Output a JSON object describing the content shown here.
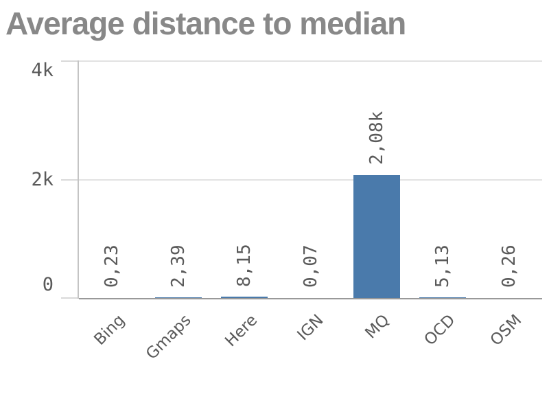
{
  "chart_data": {
    "type": "bar",
    "title": "Average distance to median",
    "categories": [
      "Bing",
      "Gmaps",
      "Here",
      "IGN",
      "MQ",
      "OCD",
      "OSM"
    ],
    "values": [
      0.23,
      2.39,
      8.15,
      0.07,
      2080,
      5.13,
      0.26
    ],
    "value_labels": [
      "0,23",
      "2,39",
      "8,15",
      "0,07",
      "2,08k",
      "5,13",
      "0,26"
    ],
    "yticks": [
      {
        "value": 0,
        "label": "0"
      },
      {
        "value": 2000,
        "label": "2k"
      },
      {
        "value": 4000,
        "label": "4k"
      }
    ],
    "ylim": [
      0,
      4000
    ],
    "xlabel": "",
    "ylabel": "",
    "grid": true,
    "legend": false,
    "value_label_rotation": -90,
    "category_label_rotation": -45,
    "decimal_separator": ","
  },
  "colors": {
    "background": "#ffffff",
    "title": "#888888",
    "label": "#5a5a5a",
    "bar": "#4a7aab",
    "gridline": "#e2e2e2",
    "tick": "#d9d9d9",
    "y_axis_line": "#c4c4c4",
    "x_axis_line": "#999999"
  }
}
